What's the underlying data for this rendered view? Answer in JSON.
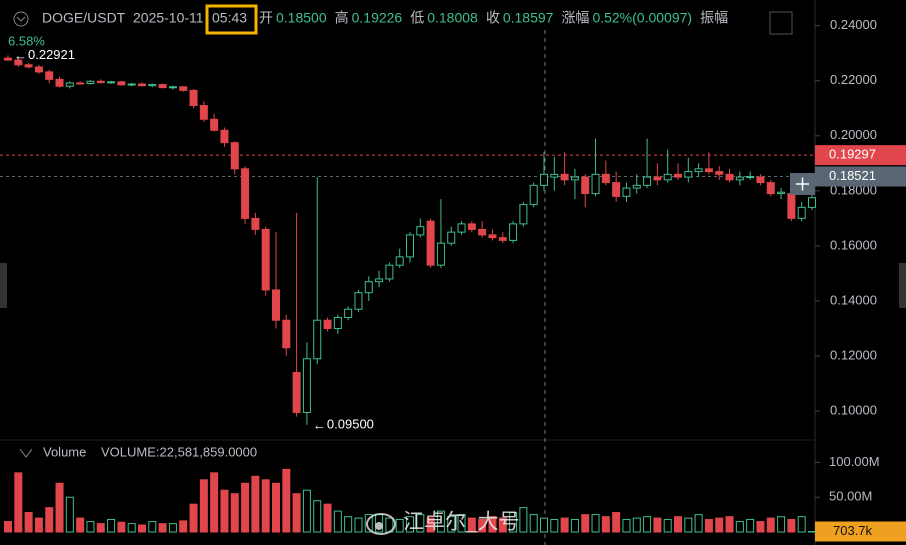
{
  "chart_data": {
    "type": "candlestick",
    "symbol": "DOGE/USDT",
    "date": "2025-10-11",
    "time": "05:43",
    "ohlc_legend": [
      {
        "label": "开",
        "value": "0.18500"
      },
      {
        "label": "高",
        "value": "0.19226"
      },
      {
        "label": "低",
        "value": "0.18008"
      },
      {
        "label": "收",
        "value": "0.18597"
      },
      {
        "label": "涨幅",
        "value": "0.52%(0.00097)"
      },
      {
        "label": "振幅",
        "value": ""
      }
    ],
    "change_note": "6.58%",
    "ohlc": [
      [
        0.2282,
        0.22921,
        0.2272,
        0.2275
      ],
      [
        0.2275,
        0.228,
        0.225,
        0.2258
      ],
      [
        0.2258,
        0.2265,
        0.2245,
        0.225
      ],
      [
        0.225,
        0.2258,
        0.2225,
        0.2232
      ],
      [
        0.2232,
        0.224,
        0.219,
        0.2205
      ],
      [
        0.2205,
        0.2215,
        0.2175,
        0.218
      ],
      [
        0.218,
        0.2198,
        0.2172,
        0.2192
      ],
      [
        0.2192,
        0.2198,
        0.2185,
        0.219
      ],
      [
        0.219,
        0.2202,
        0.2186,
        0.2198
      ],
      [
        0.2198,
        0.2205,
        0.219,
        0.2193
      ],
      [
        0.2193,
        0.22,
        0.2188,
        0.2196
      ],
      [
        0.2196,
        0.22,
        0.2182,
        0.2185
      ],
      [
        0.2185,
        0.2192,
        0.218,
        0.2188
      ],
      [
        0.2188,
        0.2194,
        0.218,
        0.2182
      ],
      [
        0.2182,
        0.219,
        0.2176,
        0.2186
      ],
      [
        0.2186,
        0.219,
        0.2172,
        0.2175
      ],
      [
        0.2175,
        0.2182,
        0.2168,
        0.2178
      ],
      [
        0.2178,
        0.218,
        0.216,
        0.2165
      ],
      [
        0.2165,
        0.217,
        0.21,
        0.211
      ],
      [
        0.211,
        0.2125,
        0.205,
        0.206
      ],
      [
        0.206,
        0.208,
        0.2015,
        0.202
      ],
      [
        0.202,
        0.203,
        0.196,
        0.1975
      ],
      [
        0.1975,
        0.198,
        0.186,
        0.188
      ],
      [
        0.188,
        0.189,
        0.168,
        0.17
      ],
      [
        0.17,
        0.172,
        0.164,
        0.166
      ],
      [
        0.166,
        0.167,
        0.142,
        0.144
      ],
      [
        0.144,
        0.165,
        0.13,
        0.133
      ],
      [
        0.133,
        0.135,
        0.12,
        0.123
      ],
      [
        0.114,
        0.172,
        0.098,
        0.0995
      ],
      [
        0.0995,
        0.125,
        0.095,
        0.119
      ],
      [
        0.119,
        0.185,
        0.117,
        0.133
      ],
      [
        0.133,
        0.134,
        0.129,
        0.13
      ],
      [
        0.13,
        0.135,
        0.128,
        0.134
      ],
      [
        0.134,
        0.138,
        0.133,
        0.137
      ],
      [
        0.137,
        0.144,
        0.136,
        0.143
      ],
      [
        0.143,
        0.149,
        0.14,
        0.147
      ],
      [
        0.147,
        0.151,
        0.145,
        0.148
      ],
      [
        0.148,
        0.154,
        0.147,
        0.153
      ],
      [
        0.153,
        0.159,
        0.152,
        0.156
      ],
      [
        0.156,
        0.165,
        0.154,
        0.164
      ],
      [
        0.164,
        0.17,
        0.163,
        0.167
      ],
      [
        0.169,
        0.17,
        0.152,
        0.153
      ],
      [
        0.153,
        0.177,
        0.152,
        0.161
      ],
      [
        0.161,
        0.167,
        0.16,
        0.165
      ],
      [
        0.165,
        0.169,
        0.164,
        0.168
      ],
      [
        0.168,
        0.169,
        0.165,
        0.166
      ],
      [
        0.166,
        0.169,
        0.163,
        0.164
      ],
      [
        0.164,
        0.166,
        0.162,
        0.163
      ],
      [
        0.163,
        0.165,
        0.161,
        0.162
      ],
      [
        0.162,
        0.169,
        0.161,
        0.168
      ],
      [
        0.168,
        0.176,
        0.167,
        0.175
      ],
      [
        0.175,
        0.183,
        0.174,
        0.182
      ],
      [
        0.182,
        0.194,
        0.18,
        0.186
      ],
      [
        0.185,
        0.19226,
        0.18008,
        0.18597
      ],
      [
        0.186,
        0.194,
        0.182,
        0.184
      ],
      [
        0.184,
        0.188,
        0.177,
        0.185
      ],
      [
        0.185,
        0.186,
        0.174,
        0.179
      ],
      [
        0.179,
        0.199,
        0.178,
        0.186
      ],
      [
        0.186,
        0.191,
        0.182,
        0.183
      ],
      [
        0.183,
        0.187,
        0.176,
        0.178
      ],
      [
        0.178,
        0.183,
        0.176,
        0.181
      ],
      [
        0.181,
        0.186,
        0.179,
        0.182
      ],
      [
        0.182,
        0.199,
        0.181,
        0.185
      ],
      [
        0.185,
        0.19,
        0.182,
        0.184
      ],
      [
        0.184,
        0.195,
        0.183,
        0.186
      ],
      [
        0.186,
        0.19,
        0.184,
        0.185
      ],
      [
        0.185,
        0.192,
        0.183,
        0.187
      ],
      [
        0.187,
        0.19,
        0.185,
        0.188
      ],
      [
        0.188,
        0.194,
        0.186,
        0.187
      ],
      [
        0.187,
        0.189,
        0.184,
        0.186
      ],
      [
        0.186,
        0.188,
        0.183,
        0.184
      ],
      [
        0.184,
        0.187,
        0.182,
        0.185
      ],
      [
        0.185,
        0.187,
        0.184,
        0.1852
      ],
      [
        0.185,
        0.186,
        0.182,
        0.183
      ],
      [
        0.183,
        0.184,
        0.178,
        0.179
      ],
      [
        0.179,
        0.181,
        0.177,
        0.1795
      ],
      [
        0.179,
        0.18,
        0.169,
        0.17
      ],
      [
        0.17,
        0.176,
        0.169,
        0.174
      ],
      [
        0.174,
        0.179,
        0.173,
        0.1775
      ]
    ],
    "volume": [
      15,
      85,
      28,
      20,
      35,
      70,
      50,
      20,
      15,
      12,
      18,
      14,
      12,
      10,
      15,
      12,
      12,
      16,
      40,
      75,
      85,
      60,
      55,
      70,
      80,
      75,
      70,
      90,
      55,
      60,
      45,
      40,
      30,
      22,
      20,
      25,
      25,
      20,
      18,
      22,
      25,
      20,
      30,
      22,
      25,
      20,
      18,
      22,
      20,
      28,
      35,
      25,
      20,
      18,
      20,
      18,
      25,
      25,
      22,
      28,
      18,
      20,
      22,
      20,
      18,
      22,
      20,
      25,
      18,
      20,
      22,
      15,
      18,
      15,
      20,
      22,
      18,
      22,
      0.7037
    ],
    "volume_title": "Volume",
    "volume_legend": "VOLUME:22,581,859.0000",
    "last_volume_label": "703.7k",
    "ylim": [
      0.0924,
      0.2446
    ],
    "yticks": [
      {
        "value": 0.24,
        "label": "0.24000"
      },
      {
        "value": 0.22,
        "label": "0.22000"
      },
      {
        "value": 0.2,
        "label": "0.20000"
      },
      {
        "value": 0.18,
        "label": "0.18000"
      },
      {
        "value": 0.16,
        "label": "0.16000"
      },
      {
        "value": 0.14,
        "label": "0.14000"
      },
      {
        "value": 0.12,
        "label": "0.12000"
      },
      {
        "value": 0.1,
        "label": "0.10000"
      }
    ],
    "vlim": [
      0,
      102
    ],
    "vticks": [
      {
        "value": 100,
        "label": "100.00M"
      },
      {
        "value": 50,
        "label": "50.00M"
      }
    ],
    "price_lines": [
      {
        "value": 0.19297,
        "label": "0.19297",
        "color": "#e0464b"
      },
      {
        "value": 0.18521,
        "label": "0.18521",
        "color": "#5a6674"
      }
    ],
    "annotations": [
      {
        "value": 0.22921,
        "label": "0.22921",
        "index": 0
      },
      {
        "value": 0.095,
        "label": "0.09500",
        "index": 29
      }
    ],
    "up_color": "#3fbf8c",
    "down_color": "#e0464b",
    "watermark": "江卓尔_大号"
  }
}
